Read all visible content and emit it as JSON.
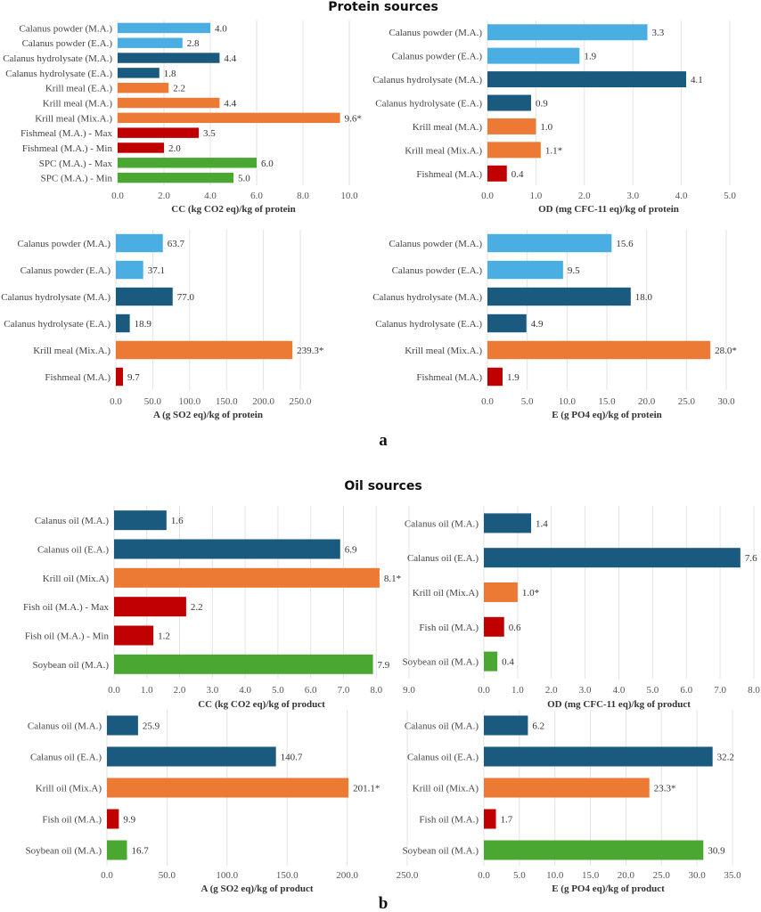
{
  "colors": {
    "calanus_powder": "#4aaee3",
    "calanus_dark": "#1a5a7e",
    "krill": "#ec7a35",
    "fish": "#c00000",
    "plant": "#4aa832",
    "grid": "#e3e3e3"
  },
  "panels": {
    "a": {
      "title": "Protein sources",
      "label": "a"
    },
    "b": {
      "title": "Oil sources",
      "label": "b"
    }
  },
  "chart_data": [
    {
      "type": "bar",
      "orientation": "horizontal",
      "panel": "a",
      "xlabel": "CC (kg CO2 eq)/kg of protein",
      "xlim": [
        0,
        10
      ],
      "ticks": [
        "0.0",
        "2.0",
        "4.0",
        "6.0",
        "8.0",
        "10.0"
      ],
      "grid": true,
      "categories": [
        "Calanus powder (M.A.)",
        "Calanus powder (E.A.)",
        "Calanus hydrolysate (M.A.)",
        "Calanus hydrolysate (E.A.)",
        "Krill meal (E.A.)",
        "Krill meal (M.A.)",
        "Krill meal (Mix.A.)",
        "Fishmeal (M.A.) - Max",
        "Fishmeal (M.A.) - Min",
        "SPC (M.A.) - Max",
        "SPC (M.A.) - Min"
      ],
      "values": [
        4.0,
        2.8,
        4.4,
        1.8,
        2.2,
        4.4,
        9.6,
        3.5,
        2.0,
        6.0,
        5.0
      ],
      "data_labels": [
        "4.0",
        "2.8",
        "4.4",
        "1.8",
        "2.2",
        "4.4",
        "9.6*",
        "3.5",
        "2.0",
        "6.0",
        "5.0"
      ],
      "colors": [
        "#4aaee3",
        "#4aaee3",
        "#1a5a7e",
        "#1a5a7e",
        "#ec7a35",
        "#ec7a35",
        "#ec7a35",
        "#c00000",
        "#c00000",
        "#4aa832",
        "#4aa832"
      ]
    },
    {
      "type": "bar",
      "orientation": "horizontal",
      "panel": "a",
      "xlabel": "OD (mg CFC-11 eq)/kg of protein",
      "xlim": [
        0,
        5
      ],
      "ticks": [
        "0.0",
        "1.0",
        "2.0",
        "3.0",
        "4.0",
        "5.0"
      ],
      "grid": true,
      "categories": [
        "Calanus powder (M.A.)",
        "Calanus powder (E.A.)",
        "Calanus hydrolysate (M.A.)",
        "Calanus hydrolysate (E.A.)",
        "Krill meal (M.A.)",
        "Krill meal (Mix.A.)",
        "Fishmeal (M.A.)"
      ],
      "values": [
        3.3,
        1.9,
        4.1,
        0.9,
        1.0,
        1.1,
        0.4
      ],
      "data_labels": [
        "3.3",
        "1.9",
        "4.1",
        "0.9",
        "1.0",
        "1.1*",
        "0.4"
      ],
      "colors": [
        "#4aaee3",
        "#4aaee3",
        "#1a5a7e",
        "#1a5a7e",
        "#ec7a35",
        "#ec7a35",
        "#c00000"
      ]
    },
    {
      "type": "bar",
      "orientation": "horizontal",
      "panel": "a",
      "xlabel": "A (g SO2 eq)/kg of protein",
      "xlim": [
        0,
        250
      ],
      "ticks": [
        "0.0",
        "50.0",
        "100.0",
        "150.0",
        "200.0",
        "250.0"
      ],
      "grid": true,
      "categories": [
        "Calanus powder (M.A.)",
        "Calanus powder (E.A.)",
        "Calanus hydrolysate (M.A.)",
        "Calanus hydrolysate (E.A.)",
        "Krill meal (Mix.A.)",
        "Fishmeal (M.A.)"
      ],
      "values": [
        63.7,
        37.1,
        77.0,
        18.9,
        239.3,
        9.7
      ],
      "data_labels": [
        "63.7",
        "37.1",
        "77.0",
        "18.9",
        "239.3*",
        "9.7"
      ],
      "colors": [
        "#4aaee3",
        "#4aaee3",
        "#1a5a7e",
        "#1a5a7e",
        "#ec7a35",
        "#c00000"
      ]
    },
    {
      "type": "bar",
      "orientation": "horizontal",
      "panel": "a",
      "xlabel": "E (g PO4 eq)/kg of protein",
      "xlim": [
        0,
        30
      ],
      "ticks": [
        "0.0",
        "5.0",
        "10.0",
        "15.0",
        "20.0",
        "25.0",
        "30.0"
      ],
      "grid": true,
      "categories": [
        "Calanus powder (M.A.)",
        "Calanus powder (E.A.)",
        "Calanus hydrolysate (M.A.)",
        "Calanus hydrolysate (E.A.)",
        "Krill meal (Mix.A.)",
        "Fishmeal (M.A.)"
      ],
      "values": [
        15.6,
        9.5,
        18.0,
        4.9,
        28.0,
        1.9
      ],
      "data_labels": [
        "15.6",
        "9.5",
        "18.0",
        "4.9",
        "28.0*",
        "1.9"
      ],
      "colors": [
        "#4aaee3",
        "#4aaee3",
        "#1a5a7e",
        "#1a5a7e",
        "#ec7a35",
        "#c00000"
      ]
    },
    {
      "type": "bar",
      "orientation": "horizontal",
      "panel": "b",
      "xlabel": "CC (kg CO2 eq)/kg of product",
      "xlim": [
        0,
        9
      ],
      "ticks": [
        "0.0",
        "1.0",
        "2.0",
        "3.0",
        "4.0",
        "5.0",
        "6.0",
        "7.0",
        "8.0",
        "9.0"
      ],
      "grid": true,
      "categories": [
        "Calanus oil (M.A.)",
        "Calanus oil (E.A.)",
        "Krill oil (Mix.A)",
        "Fish oil (M.A.) - Max",
        "Fish oil (M.A.) - Min",
        "Soybean oil (M.A.)"
      ],
      "values": [
        1.6,
        6.9,
        8.1,
        2.2,
        1.2,
        7.9
      ],
      "data_labels": [
        "1.6",
        "6.9",
        "8.1*",
        "2.2",
        "1.2",
        "7.9"
      ],
      "colors": [
        "#1a5a7e",
        "#1a5a7e",
        "#ec7a35",
        "#c00000",
        "#c00000",
        "#4aa832"
      ]
    },
    {
      "type": "bar",
      "orientation": "horizontal",
      "panel": "b",
      "xlabel": "OD (mg CFC-11 eq)/kg of product",
      "xlim": [
        0,
        8
      ],
      "ticks": [
        "0.0",
        "1.0",
        "2.0",
        "3.0",
        "4.0",
        "5.0",
        "6.0",
        "7.0",
        "8.0"
      ],
      "grid": true,
      "categories": [
        "Calanus oil (M.A.)",
        "Calanus oil (E.A.)",
        "Krill oil (Mix.A)",
        "Fish oil (M.A.)",
        "Soybean oil (M.A.)"
      ],
      "values": [
        1.4,
        7.6,
        1.0,
        0.6,
        0.4
      ],
      "data_labels": [
        "1.4",
        "7.6",
        "1.0*",
        "0.6",
        "0.4"
      ],
      "colors": [
        "#1a5a7e",
        "#1a5a7e",
        "#ec7a35",
        "#c00000",
        "#4aa832"
      ]
    },
    {
      "type": "bar",
      "orientation": "horizontal",
      "panel": "b",
      "xlabel": "A (g SO2 eq)/kg of product",
      "xlim": [
        0,
        250
      ],
      "ticks": [
        "0.0",
        "50.0",
        "100.0",
        "150.0",
        "200.0",
        "250.0"
      ],
      "grid": true,
      "categories": [
        "Calanus oil (M.A.)",
        "Calanus oil (E.A.)",
        "Krill oil (Mix.A)",
        "Fish oil (M.A.)",
        "Soybean oil (M.A.)"
      ],
      "values": [
        25.9,
        140.7,
        201.1,
        9.9,
        16.7
      ],
      "data_labels": [
        "25.9",
        "140.7",
        "201.1*",
        "9.9",
        "16.7"
      ],
      "colors": [
        "#1a5a7e",
        "#1a5a7e",
        "#ec7a35",
        "#c00000",
        "#4aa832"
      ]
    },
    {
      "type": "bar",
      "orientation": "horizontal",
      "panel": "b",
      "xlabel": "E (g PO4 eq)/kg of product",
      "xlim": [
        0,
        35
      ],
      "ticks": [
        "0.0",
        "5.0",
        "10.0",
        "15.0",
        "20.0",
        "25.0",
        "30.0",
        "35.0"
      ],
      "grid": true,
      "categories": [
        "Calanus oil (M.A.)",
        "Calanus oil (E.A.)",
        "Krill oil (Mix.A)",
        "Fish oil (M.A.)",
        "Soybean oil (M.A.)"
      ],
      "values": [
        6.2,
        32.2,
        23.3,
        1.7,
        30.9
      ],
      "data_labels": [
        "6.2",
        "32.2",
        "23.3*",
        "1.7",
        "30.9"
      ],
      "colors": [
        "#1a5a7e",
        "#1a5a7e",
        "#ec7a35",
        "#c00000",
        "#4aa832"
      ]
    }
  ]
}
